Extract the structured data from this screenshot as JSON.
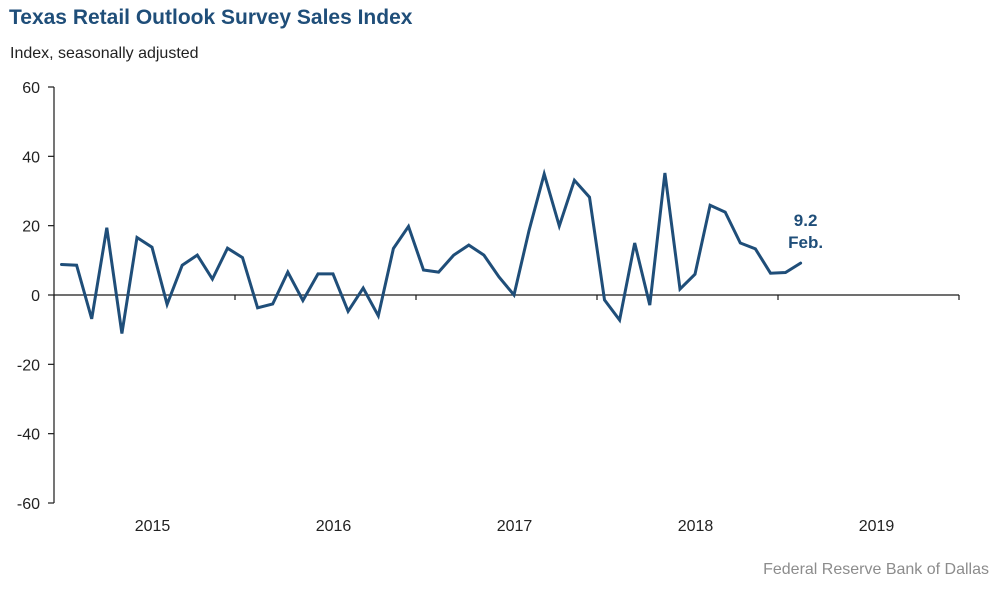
{
  "chart_data": {
    "type": "line",
    "title": "Texas Retail Outlook Survey Sales Index",
    "subtitle": "Index, seasonally adjusted",
    "xlabel": "",
    "ylabel": "Index, seasonally adjusted",
    "ylim": [
      -60,
      60
    ],
    "yticks": [
      60,
      40,
      20,
      0,
      -20,
      -40,
      -60
    ],
    "x_categories": [
      "2015",
      "2016",
      "2017",
      "2018",
      "2019"
    ],
    "x_start": "2015-01",
    "x_end": "2019-12",
    "frequency": "monthly",
    "grid": false,
    "legend": "none",
    "series": [
      {
        "name": "Sales Index",
        "color": "#1f4e79",
        "start": "2015-01",
        "values": [
          8.8,
          8.6,
          -6.9,
          19.4,
          -11.1,
          16.6,
          13.8,
          -2.7,
          8.6,
          11.5,
          4.6,
          13.5,
          10.8,
          -3.7,
          -2.6,
          6.6,
          -1.6,
          6.1,
          6.1,
          -4.7,
          2.0,
          -6.0,
          13.4,
          19.8,
          7.2,
          6.6,
          11.5,
          14.4,
          11.5,
          5.2,
          0.0,
          18.7,
          34.9,
          19.9,
          33.1,
          28.2,
          -1.4,
          -7.2,
          15.0,
          -2.9,
          35.2,
          1.7,
          6.0,
          25.9,
          23.9,
          15.0,
          13.3,
          6.3,
          6.5,
          9.2
        ]
      }
    ],
    "annotations": [
      {
        "value_text": "9.2",
        "label_text": "Feb."
      }
    ],
    "source": "Federal Reserve Bank of Dallas"
  }
}
